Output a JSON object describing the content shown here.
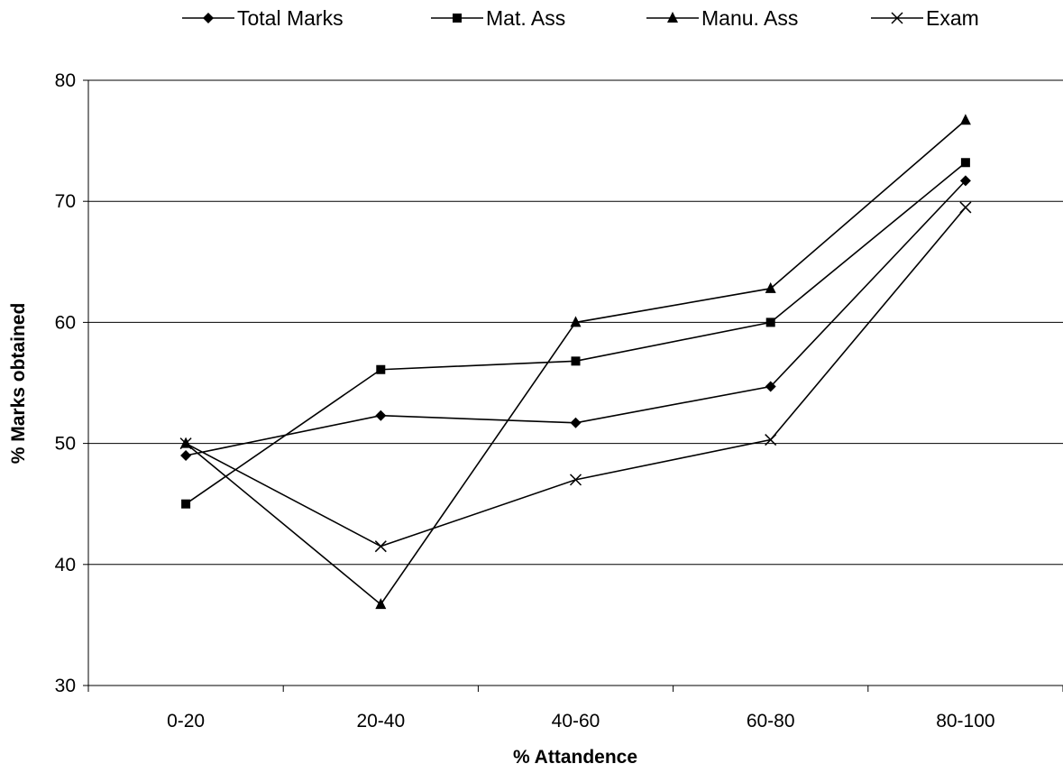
{
  "chart_data": {
    "type": "line",
    "title": "",
    "xlabel": "% Attandence",
    "ylabel": "% Marks obtained",
    "categories": [
      "0-20",
      "20-40",
      "40-60",
      "60-80",
      "80-100"
    ],
    "ylim": [
      30,
      80
    ],
    "yticks": [
      30,
      40,
      50,
      60,
      70,
      80
    ],
    "grid": true,
    "legend_position": "top",
    "series": [
      {
        "name": "Total Marks",
        "marker": "diamond",
        "values": [
          49.0,
          52.3,
          51.7,
          54.7,
          71.7
        ]
      },
      {
        "name": "Mat. Ass",
        "marker": "square",
        "values": [
          45.0,
          56.1,
          56.8,
          60.0,
          73.2
        ]
      },
      {
        "name": "Manu. Ass",
        "marker": "triangle",
        "values": [
          50.0,
          36.7,
          60.0,
          62.8,
          76.7
        ]
      },
      {
        "name": "Exam",
        "marker": "x",
        "values": [
          50.0,
          41.5,
          47.0,
          50.3,
          69.5
        ]
      }
    ],
    "colors": {
      "line": "#000000",
      "grid": "#000000",
      "background": "#ffffff"
    }
  }
}
